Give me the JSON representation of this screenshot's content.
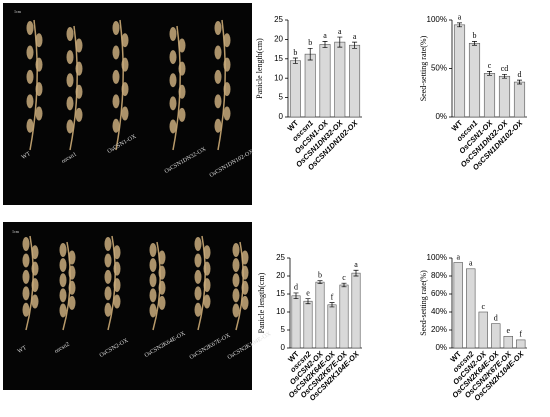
{
  "photos": [
    {
      "scale_label": "1cm",
      "labels": [
        "WT",
        "oscsn1",
        "OsCSN1-OX",
        "OsCSN1DN32-OX",
        "OsCSN1DN102-OX"
      ]
    },
    {
      "scale_label": "1cm",
      "labels": [
        "WT",
        "oscsn2",
        "OsCSN2-OX",
        "OsCSN2K64E-OX",
        "OsCSN2K67E-OX",
        "OsCSN2K104E-OX"
      ]
    }
  ],
  "chart_data": [
    {
      "type": "bar",
      "y_label": "Panicle length(cm)",
      "categories": [
        "WT",
        "oscsn1",
        "OsCSN1-OX",
        "OsCSN1DN32-OX",
        "OsCSN1DN102-OX"
      ],
      "values": [
        14.5,
        16.2,
        18.7,
        19.3,
        18.5
      ],
      "errors": [
        0.7,
        1.5,
        0.8,
        1.3,
        0.8
      ],
      "letters": [
        "b",
        "b",
        "a",
        "a",
        "a"
      ],
      "color": "#d9d9d9",
      "ylim": [
        0,
        25
      ],
      "yticks": [
        0,
        5,
        10,
        15,
        20,
        25
      ]
    },
    {
      "type": "bar",
      "y_label": "Seed-setting  rate(%)",
      "categories": [
        "WT",
        "oscsn1",
        "OsCSN1-OX",
        "OsCSN1DN32-OX",
        "OsCSN1DN102-OX"
      ],
      "values": [
        95,
        76,
        45,
        42,
        36
      ],
      "errors": [
        2,
        2,
        2,
        2,
        2
      ],
      "letters": [
        "a",
        "b",
        "c",
        "cd",
        "d"
      ],
      "color": "#d9d9d9",
      "ylim": [
        0,
        100
      ],
      "yticks": [
        {
          "value": 0,
          "label": "0%"
        },
        {
          "value": 50,
          "label": "50%"
        },
        {
          "value": 100,
          "label": "100%"
        }
      ]
    },
    {
      "type": "bar",
      "y_label": "Panicle length(cm)",
      "categories": [
        "WT",
        "oscsn2",
        "OsCSN2-OX",
        "OsCSN2K64E-OX",
        "OsCSN2K67E-OX",
        "OsCSN2K104E-OX"
      ],
      "values": [
        14.5,
        13,
        18.3,
        12,
        17.5,
        20.8
      ],
      "errors": [
        0.8,
        0.7,
        0.4,
        0.6,
        0.5,
        0.8
      ],
      "letters": [
        "d",
        "e",
        "b",
        "f",
        "c",
        "a"
      ],
      "color": "#d9d9d9",
      "ylim": [
        0,
        25
      ],
      "yticks": [
        0,
        5,
        10,
        15,
        20,
        25
      ]
    },
    {
      "type": "bar",
      "y_label": "Seed-setting  rate(%)",
      "categories": [
        "WT",
        "oscsn2",
        "OsCSN2-OX",
        "OsCSN2K64E-OX",
        "OsCSN2K67E-OX",
        "OsCSN2K104E-OX"
      ],
      "values": [
        95,
        88,
        40,
        27,
        13,
        9
      ],
      "letters": [
        "a",
        "a",
        "c",
        "d",
        "e",
        "f"
      ],
      "color": "#d9d9d9",
      "ylim": [
        0,
        100
      ],
      "yticks": [
        {
          "value": 0,
          "label": "0%"
        },
        {
          "value": 20,
          "label": "20%"
        },
        {
          "value": 40,
          "label": "40%"
        },
        {
          "value": 60,
          "label": "60%"
        },
        {
          "value": 80,
          "label": "80%"
        },
        {
          "value": 100,
          "label": "100%"
        }
      ]
    }
  ]
}
